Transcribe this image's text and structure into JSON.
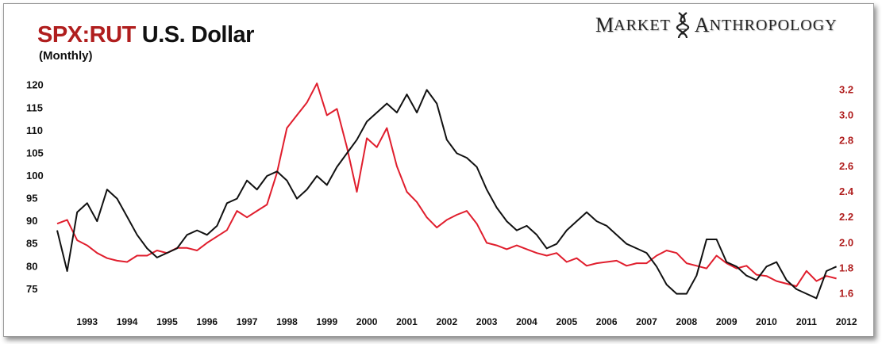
{
  "title": {
    "part1": "SPX:RUT",
    "part2": "U.S. Dollar",
    "subtitle": "(Monthly)"
  },
  "logo": {
    "word1_initial": "M",
    "word1_rest": "ARKET",
    "word2_initial": "A",
    "word2_rest": "NTHROPOLOGY"
  },
  "colors": {
    "spx_rut": "#e01e2d",
    "usd": "#111111",
    "right_axis": "#b01e1e"
  },
  "chart_data": {
    "type": "line",
    "x": [
      "1992-10",
      "1993-01",
      "1993-04",
      "1993-07",
      "1993-10",
      "1994-01",
      "1994-04",
      "1994-07",
      "1994-10",
      "1995-01",
      "1995-04",
      "1995-07",
      "1995-10",
      "1996-01",
      "1996-04",
      "1996-07",
      "1996-10",
      "1997-01",
      "1997-04",
      "1997-07",
      "1997-10",
      "1998-01",
      "1998-04",
      "1998-07",
      "1998-10",
      "1999-01",
      "1999-04",
      "1999-07",
      "1999-10",
      "2000-01",
      "2000-04",
      "2000-07",
      "2000-10",
      "2001-01",
      "2001-04",
      "2001-07",
      "2001-10",
      "2002-01",
      "2002-04",
      "2002-07",
      "2002-10",
      "2003-01",
      "2003-04",
      "2003-07",
      "2003-10",
      "2004-01",
      "2004-04",
      "2004-07",
      "2004-10",
      "2005-01",
      "2005-04",
      "2005-07",
      "2005-10",
      "2006-01",
      "2006-04",
      "2006-07",
      "2006-10",
      "2007-01",
      "2007-04",
      "2007-07",
      "2007-10",
      "2008-01",
      "2008-04",
      "2008-07",
      "2008-10",
      "2009-01",
      "2009-04",
      "2009-07",
      "2009-10",
      "2010-01",
      "2010-04",
      "2010-07",
      "2010-10",
      "2011-01",
      "2011-04",
      "2011-07",
      "2011-10",
      "2012-01",
      "2012-04"
    ],
    "series": [
      {
        "name": "U.S. Dollar",
        "axis": "left",
        "values": [
          88,
          79,
          92,
          94,
          90,
          97,
          95,
          91,
          87,
          84,
          82,
          83,
          84,
          87,
          88,
          87,
          89,
          94,
          95,
          99,
          97,
          100,
          101,
          99,
          95,
          97,
          100,
          98,
          102,
          105,
          108,
          112,
          114,
          116,
          114,
          118,
          114,
          119,
          116,
          108,
          105,
          104,
          102,
          97,
          93,
          90,
          88,
          89,
          87,
          84,
          85,
          88,
          90,
          92,
          90,
          89,
          87,
          85,
          84,
          83,
          80,
          76,
          74,
          74,
          78,
          86,
          86,
          81,
          80,
          78,
          77,
          80,
          81,
          77,
          75,
          74,
          73,
          79,
          80
        ]
      },
      {
        "name": "SPX:RUT",
        "axis": "right",
        "values": [
          2.15,
          2.18,
          2.02,
          1.98,
          1.92,
          1.88,
          1.86,
          1.85,
          1.9,
          1.9,
          1.94,
          1.92,
          1.96,
          1.96,
          1.94,
          2.0,
          2.05,
          2.1,
          2.25,
          2.2,
          2.25,
          2.3,
          2.55,
          2.9,
          3.0,
          3.1,
          3.25,
          3.0,
          3.05,
          2.75,
          2.4,
          2.82,
          2.75,
          2.9,
          2.6,
          2.4,
          2.32,
          2.2,
          2.12,
          2.18,
          2.22,
          2.25,
          2.15,
          2.0,
          1.98,
          1.95,
          1.98,
          1.95,
          1.92,
          1.9,
          1.92,
          1.85,
          1.88,
          1.82,
          1.84,
          1.85,
          1.86,
          1.82,
          1.84,
          1.84,
          1.9,
          1.94,
          1.92,
          1.84,
          1.82,
          1.8,
          1.9,
          1.84,
          1.8,
          1.82,
          1.75,
          1.74,
          1.7,
          1.68,
          1.66,
          1.78,
          1.7,
          1.74,
          1.72
        ]
      }
    ],
    "y_left": {
      "ticks": [
        75,
        80,
        85,
        90,
        95,
        100,
        105,
        110,
        115,
        120
      ],
      "range": [
        72,
        121
      ]
    },
    "y_right": {
      "ticks": [
        1.6,
        1.8,
        2.0,
        2.2,
        2.4,
        2.6,
        2.8,
        3.0,
        3.2
      ],
      "range": [
        1.53,
        3.27
      ]
    },
    "x_tick_labels": [
      "1993",
      "1994",
      "1995",
      "1996",
      "1997",
      "1998",
      "1999",
      "2000",
      "2001",
      "2002",
      "2003",
      "2004",
      "2005",
      "2006",
      "2007",
      "2008",
      "2009",
      "2010",
      "2011",
      "2012"
    ],
    "grid": false,
    "legend": "none"
  }
}
